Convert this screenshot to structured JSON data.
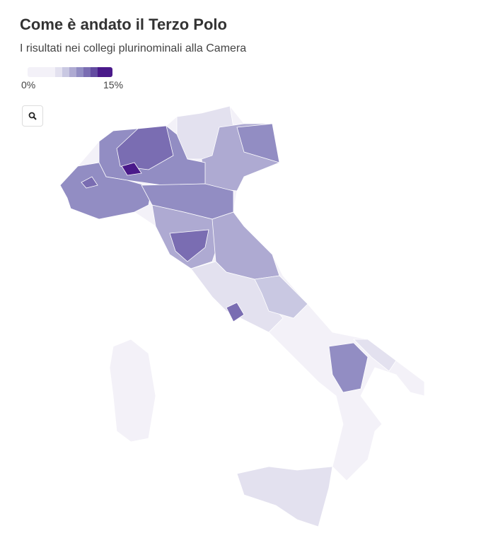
{
  "title": "Come è andato il Terzo Polo",
  "subtitle": "I risultati nei collegi plurinominali alla Camera",
  "legend": {
    "min_label": "0%",
    "max_label": "15%",
    "min": 0,
    "max": 15,
    "colors": [
      "#f3f1f8",
      "#e3e1ef",
      "#c9c8e2",
      "#aeaad2",
      "#928dc3",
      "#7a6db2",
      "#634ba1",
      "#4a1a8a"
    ]
  },
  "controls": {
    "zoom_icon": "search-icon"
  }
}
